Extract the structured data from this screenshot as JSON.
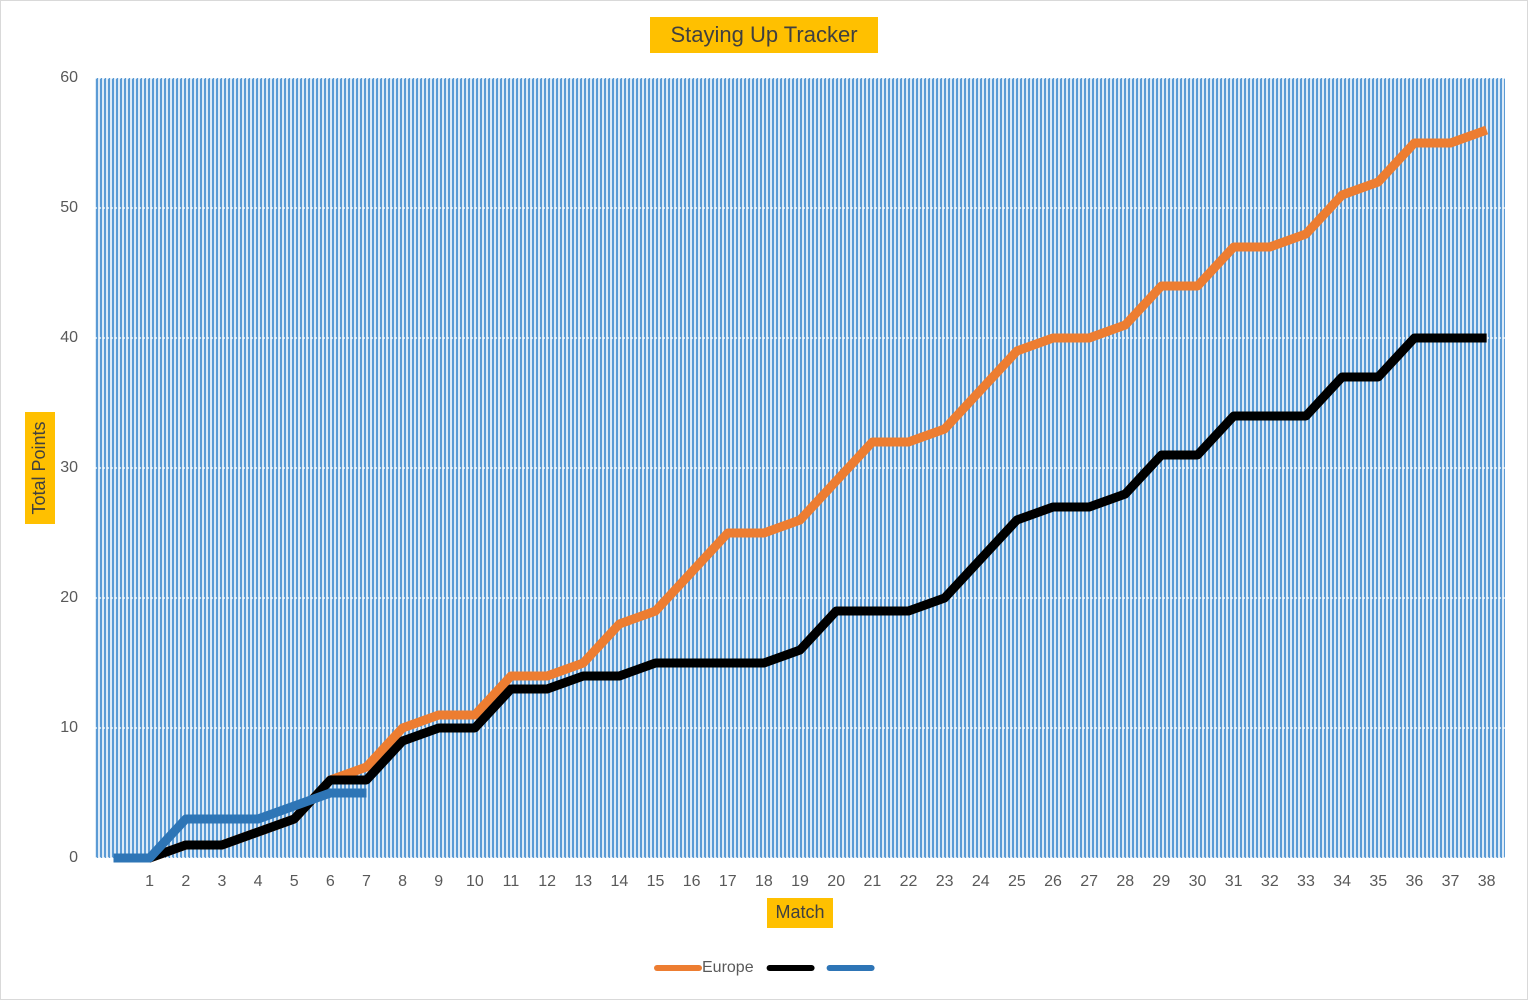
{
  "chart_data": {
    "type": "line",
    "title": "Staying Up Tracker",
    "x_label": "Match",
    "y_label": "Total Points",
    "categories": [
      null,
      "1",
      "2",
      "3",
      "4",
      "5",
      "6",
      "7",
      "8",
      "9",
      "10",
      "11",
      "12",
      "13",
      "14",
      "15",
      "16",
      "17",
      "18",
      "19",
      "20",
      "21",
      "22",
      "23",
      "24",
      "25",
      "26",
      "27",
      "28",
      "29",
      "30",
      "31",
      "32",
      "33",
      "34",
      "35",
      "36",
      "37",
      "38"
    ],
    "series": [
      {
        "name": "Europe",
        "color": "#ed7d31",
        "values": [
          0,
          0,
          1,
          1,
          2,
          3,
          6,
          7,
          10,
          11,
          11,
          14,
          14,
          15,
          18,
          19,
          22,
          25,
          25,
          26,
          29,
          32,
          32,
          33,
          36,
          39,
          40,
          40,
          41,
          44,
          44,
          47,
          47,
          48,
          51,
          52,
          55,
          55,
          56
        ]
      },
      {
        "color": "#000000",
        "values": [
          0,
          0,
          1,
          1,
          2,
          3,
          6,
          6,
          9,
          10,
          10,
          13,
          13,
          14,
          14,
          15,
          15,
          15,
          15,
          16,
          19,
          19,
          19,
          20,
          23,
          26,
          27,
          27,
          28,
          31,
          31,
          34,
          34,
          34,
          37,
          37,
          40,
          40,
          40
        ]
      },
      {
        "color": "#2e75b6",
        "values": [
          0,
          0,
          3,
          3,
          3,
          4,
          5,
          5,
          null,
          null,
          null,
          null,
          null,
          null,
          null,
          null,
          null,
          null,
          null,
          null,
          null,
          null,
          null,
          null,
          null,
          null,
          null,
          null,
          null,
          null,
          null,
          null,
          null,
          null,
          null,
          null,
          null,
          null,
          null
        ]
      }
    ],
    "ylim": [
      0,
      60
    ],
    "yticks": [
      0,
      10,
      20,
      30,
      40,
      50,
      60
    ],
    "grid": true,
    "legend": "bottom"
  }
}
